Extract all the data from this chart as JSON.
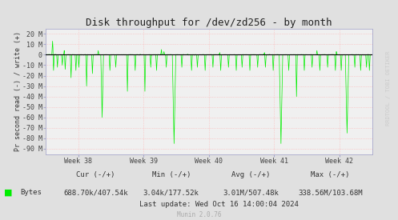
{
  "title": "Disk throughput for /dev/zd256 - by month",
  "ylabel": "Pr second read (-) / write (+)",
  "background_color": "#e0e0e0",
  "plot_bg_color": "#f0f0f0",
  "grid_color": "#ffaaaa",
  "line_color": "#00ee00",
  "zero_line_color": "#000000",
  "ylim": [
    -95000000,
    25000000
  ],
  "yticks": [
    -90000000,
    -80000000,
    -70000000,
    -60000000,
    -50000000,
    -40000000,
    -30000000,
    -20000000,
    -10000000,
    0,
    10000000,
    20000000
  ],
  "ytick_labels": [
    "-90 M",
    "-80 M",
    "-70 M",
    "-60 M",
    "-50 M",
    "-40 M",
    "-30 M",
    "-20 M",
    "-10 M",
    "0",
    "10 M",
    "20 M"
  ],
  "xtick_labels": [
    "Week 38",
    "Week 39",
    "Week 40",
    "Week 41",
    "Week 42"
  ],
  "legend_label": "Bytes",
  "cur_label": "Cur (-/+)",
  "cur_value": "688.70k/407.54k",
  "min_label": "Min (-/+)",
  "min_value": "3.04k/177.52k",
  "avg_label": "Avg (-/+)",
  "avg_value": "3.01M/507.48k",
  "max_label": "Max (-/+)",
  "max_value": "338.56M/103.68M",
  "last_update": "Last update: Wed Oct 16 14:00:04 2024",
  "munin_version": "Munin 2.0.76",
  "watermark": "RRDTOOL / TOBI OETIKER",
  "title_fontsize": 9,
  "axis_label_fontsize": 6,
  "tick_fontsize": 6,
  "stats_fontsize": 6.5,
  "watermark_fontsize": 5
}
